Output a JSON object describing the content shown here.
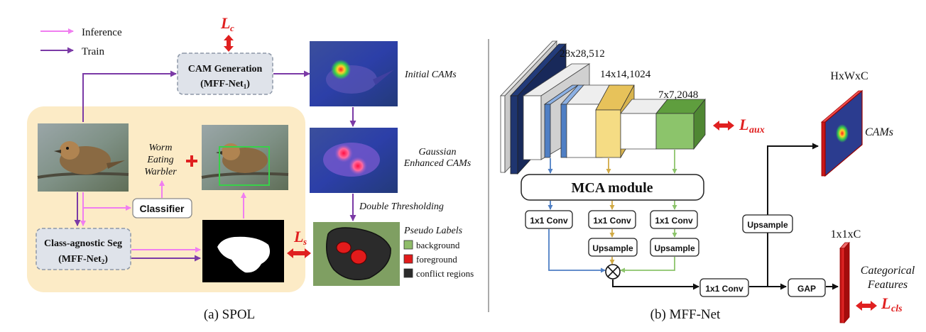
{
  "spol": {
    "legend": {
      "inference": "Inference",
      "train": "Train"
    },
    "loss_c": {
      "base": "L",
      "sub": "c"
    },
    "loss_s": {
      "base": "L",
      "sub": "s"
    },
    "cam_generation": {
      "line1": "CAM Generation",
      "line2_base": "(MFF-Net",
      "line2_sub": "1",
      "line2_end": ")"
    },
    "initial_cams": "Initial CAMs",
    "gaussian": {
      "line1": "Gaussian",
      "line2": "Enhanced CAMs"
    },
    "double_thresholding": "Double Thresholding",
    "class_name": {
      "line1": "Worm",
      "line2": "Eating",
      "line3": "Warbler"
    },
    "classifier": "Classifier",
    "class_agnostic": {
      "line1": "Class-agnostic Seg",
      "line2_base": "(MFF-Net",
      "line2_sub": "2",
      "line2_end": ")"
    },
    "pseudo_labels": {
      "title": "Pseudo Labels",
      "items": [
        {
          "label": "background",
          "color": "#8fbc6a"
        },
        {
          "label": "foreground",
          "color": "#e21b1b"
        },
        {
          "label": "conflict regions",
          "color": "#2b2b2b"
        }
      ]
    },
    "caption": "(a) SPOL"
  },
  "mff": {
    "dim1": "28x28,512",
    "dim2": "14x14,1024",
    "dim3": "7x7,2048",
    "loss_aux": {
      "base": "L",
      "sub": "aux"
    },
    "mca": "MCA module",
    "conv1": "1x1 Conv",
    "conv2": "1x1 Conv",
    "conv3": "1x1 Conv",
    "upsample1": "Upsample",
    "upsample2": "Upsample",
    "upsample3": "Upsample",
    "conv_final": "1x1 Conv",
    "gap": "GAP",
    "hwc": "HxWxC",
    "cams": "CAMs",
    "one_c": "1x1xC",
    "categorical": {
      "line1": "Categorical",
      "line2": "Features"
    },
    "loss_cls": {
      "base": "L",
      "sub": "cls"
    },
    "caption": "(b) MFF-Net"
  },
  "colors": {
    "inference": "#f07ef0",
    "train": "#7b3aa6",
    "loss_red": "#e02020",
    "panel_bg": "#fcebc6",
    "block_blue": "#4f7fc4",
    "block_yellow": "#f5dc84",
    "block_green": "#8cc46b"
  }
}
